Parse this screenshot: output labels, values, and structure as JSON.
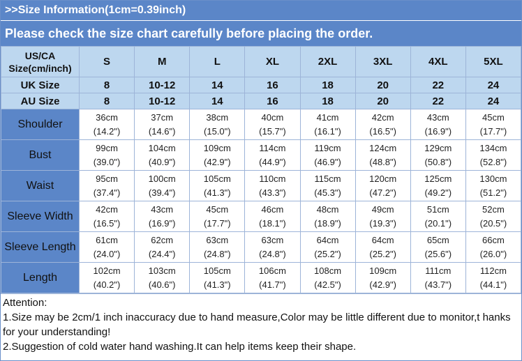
{
  "header": {
    "info": ">>Size Information(1cm=0.39inch)",
    "notice": "Please check the size chart carefully before placing the order."
  },
  "table": {
    "us_label_1": "US/CA",
    "us_label_2": "Size(cm/inch)",
    "uk_label": "UK Size",
    "au_label": "AU Size",
    "sizes": [
      "S",
      "M",
      "L",
      "XL",
      "2XL",
      "3XL",
      "4XL",
      "5XL"
    ],
    "uk_sizes": [
      "8",
      "10-12",
      "14",
      "16",
      "18",
      "20",
      "22",
      "24"
    ],
    "au_sizes": [
      "8",
      "10-12",
      "14",
      "16",
      "18",
      "20",
      "22",
      "24"
    ],
    "rows": [
      {
        "label": "Shoulder",
        "cm": [
          "36cm",
          "37cm",
          "38cm",
          "40cm",
          "41cm",
          "42cm",
          "43cm",
          "45cm"
        ],
        "inch": [
          "(14.2\")",
          "(14.6\")",
          "(15.0\")",
          "(15.7\")",
          "(16.1\")",
          "(16.5\")",
          "(16.9\")",
          "(17.7\")"
        ]
      },
      {
        "label": "Bust",
        "cm": [
          "99cm",
          "104cm",
          "109cm",
          "114cm",
          "119cm",
          "124cm",
          "129cm",
          "134cm"
        ],
        "inch": [
          "(39.0\")",
          "(40.9\")",
          "(42.9\")",
          "(44.9\")",
          "(46.9\")",
          "(48.8\")",
          "(50.8\")",
          "(52.8\")"
        ]
      },
      {
        "label": "Waist",
        "cm": [
          "95cm",
          "100cm",
          "105cm",
          "110cm",
          "115cm",
          "120cm",
          "125cm",
          "130cm"
        ],
        "inch": [
          "(37.4\")",
          "(39.4\")",
          "(41.3\")",
          "(43.3\")",
          "(45.3\")",
          "(47.2\")",
          "(49.2\")",
          "(51.2\")"
        ]
      },
      {
        "label": "Sleeve Width",
        "cm": [
          "42cm",
          "43cm",
          "45cm",
          "46cm",
          "48cm",
          "49cm",
          "51cm",
          "52cm"
        ],
        "inch": [
          "(16.5\")",
          "(16.9\")",
          "(17.7\")",
          "(18.1\")",
          "(18.9\")",
          "(19.3\")",
          "(20.1\")",
          "(20.5\")"
        ]
      },
      {
        "label": "Sleeve Length",
        "cm": [
          "61cm",
          "62cm",
          "63cm",
          "63cm",
          "64cm",
          "64cm",
          "65cm",
          "66cm"
        ],
        "inch": [
          "(24.0\")",
          "(24.4\")",
          "(24.8\")",
          "(24.8\")",
          "(25.2\")",
          "(25.2\")",
          "(25.6\")",
          "(26.0\")"
        ]
      },
      {
        "label": "Length",
        "cm": [
          "102cm",
          "103cm",
          "105cm",
          "106cm",
          "108cm",
          "109cm",
          "111cm",
          "112cm"
        ],
        "inch": [
          "(40.2\")",
          "(40.6\")",
          "(41.3\")",
          "(41.7\")",
          "(42.5\")",
          "(42.9\")",
          "(43.7\")",
          "(44.1\")"
        ]
      }
    ]
  },
  "attention": {
    "title": "Attention:",
    "line1": "1.Size may be 2cm/1 inch inaccuracy due to hand measure,Color may be little different due to monitor,t hanks for your understanding!",
    "line2": "2.Suggestion of cold water hand washing.It can help items keep their shape."
  },
  "colors": {
    "header_bg": "#5b86c8",
    "size_header_bg": "#bdd7ef",
    "border": "#9db4d8"
  }
}
